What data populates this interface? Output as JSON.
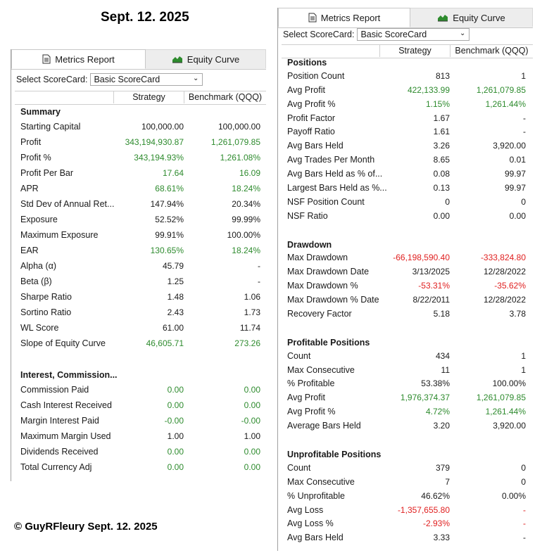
{
  "header_date": "Sept. 12. 2025",
  "footer_copyright": "© GuyRFleury Sept. 12. 2025",
  "tabs": {
    "metrics": "Metrics Report",
    "equity": "Equity Curve"
  },
  "scorecard": {
    "label": "Select ScoreCard:",
    "value": "Basic ScoreCard"
  },
  "columns": {
    "strategy": "Strategy",
    "benchmark": "Benchmark (QQQ)"
  },
  "left_rows": [
    {
      "label": "Summary",
      "section": true
    },
    {
      "label": "Starting Capital",
      "s": "100,000.00",
      "b": "100,000.00",
      "sc": "neu",
      "bc": "neu"
    },
    {
      "label": "Profit",
      "s": "343,194,930.87",
      "b": "1,261,079.85",
      "sc": "pos",
      "bc": "pos"
    },
    {
      "label": "Profit %",
      "s": "343,194.93%",
      "b": "1,261.08%",
      "sc": "pos",
      "bc": "pos"
    },
    {
      "label": "Profit Per Bar",
      "s": "17.64",
      "b": "16.09",
      "sc": "pos",
      "bc": "pos"
    },
    {
      "label": "APR",
      "s": "68.61%",
      "b": "18.24%",
      "sc": "pos",
      "bc": "pos"
    },
    {
      "label": "Std Dev of Annual Ret...",
      "s": "147.94%",
      "b": "20.34%",
      "sc": "neu",
      "bc": "neu"
    },
    {
      "label": "Exposure",
      "s": "52.52%",
      "b": "99.99%",
      "sc": "neu",
      "bc": "neu"
    },
    {
      "label": "Maximum Exposure",
      "s": "99.91%",
      "b": "100.00%",
      "sc": "neu",
      "bc": "neu"
    },
    {
      "label": "EAR",
      "s": "130.65%",
      "b": "18.24%",
      "sc": "pos",
      "bc": "pos"
    },
    {
      "label": "Alpha (α)",
      "s": "45.79",
      "b": "-",
      "sc": "neu",
      "bc": "neu"
    },
    {
      "label": "Beta (β)",
      "s": "1.25",
      "b": "-",
      "sc": "neu",
      "bc": "neu"
    },
    {
      "label": "Sharpe Ratio",
      "s": "1.48",
      "b": "1.06",
      "sc": "neu",
      "bc": "neu"
    },
    {
      "label": "Sortino Ratio",
      "s": "2.43",
      "b": "1.73",
      "sc": "neu",
      "bc": "neu"
    },
    {
      "label": "WL Score",
      "s": "61.00",
      "b": "11.74",
      "sc": "neu",
      "bc": "neu"
    },
    {
      "label": "Slope of Equity Curve",
      "s": "46,605.71",
      "b": "273.26",
      "sc": "pos",
      "bc": "pos"
    },
    {
      "label": "",
      "blank": true
    },
    {
      "label": "Interest, Commission...",
      "section": true
    },
    {
      "label": "Commission Paid",
      "s": "0.00",
      "b": "0.00",
      "sc": "pos",
      "bc": "pos"
    },
    {
      "label": "Cash Interest Received",
      "s": "0.00",
      "b": "0.00",
      "sc": "pos",
      "bc": "pos"
    },
    {
      "label": "Margin Interest Paid",
      "s": "-0.00",
      "b": "-0.00",
      "sc": "pos",
      "bc": "pos"
    },
    {
      "label": "Maximum Margin Used",
      "s": "1.00",
      "b": "1.00",
      "sc": "neu",
      "bc": "neu"
    },
    {
      "label": "Dividends Received",
      "s": "0.00",
      "b": "0.00",
      "sc": "pos",
      "bc": "pos"
    },
    {
      "label": "Total Currency Adj",
      "s": "0.00",
      "b": "0.00",
      "sc": "pos",
      "bc": "pos"
    }
  ],
  "right_rows": [
    {
      "label": "Positions",
      "section": true
    },
    {
      "label": "Position Count",
      "s": "813",
      "b": "1",
      "sc": "neu",
      "bc": "neu"
    },
    {
      "label": "Avg Profit",
      "s": "422,133.99",
      "b": "1,261,079.85",
      "sc": "pos",
      "bc": "pos"
    },
    {
      "label": "Avg Profit %",
      "s": "1.15%",
      "b": "1,261.44%",
      "sc": "pos",
      "bc": "pos"
    },
    {
      "label": "Profit Factor",
      "s": "1.67",
      "b": "-",
      "sc": "neu",
      "bc": "neu"
    },
    {
      "label": "Payoff Ratio",
      "s": "1.61",
      "b": "-",
      "sc": "neu",
      "bc": "neu"
    },
    {
      "label": "Avg Bars Held",
      "s": "3.26",
      "b": "3,920.00",
      "sc": "neu",
      "bc": "neu"
    },
    {
      "label": "Avg Trades Per Month",
      "s": "8.65",
      "b": "0.01",
      "sc": "neu",
      "bc": "neu"
    },
    {
      "label": "Avg Bars Held as % of...",
      "s": "0.08",
      "b": "99.97",
      "sc": "neu",
      "bc": "neu"
    },
    {
      "label": "Largest Bars Held as %...",
      "s": "0.13",
      "b": "99.97",
      "sc": "neu",
      "bc": "neu"
    },
    {
      "label": "NSF Position Count",
      "s": "0",
      "b": "0",
      "sc": "neu",
      "bc": "neu"
    },
    {
      "label": "NSF Ratio",
      "s": "0.00",
      "b": "0.00",
      "sc": "neu",
      "bc": "neu"
    },
    {
      "label": "",
      "blank": true
    },
    {
      "label": "Drawdown",
      "section": true
    },
    {
      "label": "Max Drawdown",
      "s": "-66,198,590.40",
      "b": "-333,824.80",
      "sc": "neg",
      "bc": "neg"
    },
    {
      "label": "Max Drawdown Date",
      "s": "3/13/2025",
      "b": "12/28/2022",
      "sc": "neu",
      "bc": "neu"
    },
    {
      "label": "Max Drawdown %",
      "s": "-53.31%",
      "b": "-35.62%",
      "sc": "neg",
      "bc": "neg"
    },
    {
      "label": "Max Drawdown % Date",
      "s": "8/22/2011",
      "b": "12/28/2022",
      "sc": "neu",
      "bc": "neu"
    },
    {
      "label": "Recovery Factor",
      "s": "5.18",
      "b": "3.78",
      "sc": "neu",
      "bc": "neu"
    },
    {
      "label": "",
      "blank": true
    },
    {
      "label": "Profitable Positions",
      "section": true
    },
    {
      "label": "Count",
      "s": "434",
      "b": "1",
      "sc": "neu",
      "bc": "neu"
    },
    {
      "label": "Max Consecutive",
      "s": "11",
      "b": "1",
      "sc": "neu",
      "bc": "neu"
    },
    {
      "label": "% Profitable",
      "s": "53.38%",
      "b": "100.00%",
      "sc": "neu",
      "bc": "neu"
    },
    {
      "label": "Avg Profit",
      "s": "1,976,374.37",
      "b": "1,261,079.85",
      "sc": "pos",
      "bc": "pos"
    },
    {
      "label": "Avg Profit %",
      "s": "4.72%",
      "b": "1,261.44%",
      "sc": "pos",
      "bc": "pos"
    },
    {
      "label": "Average Bars Held",
      "s": "3.20",
      "b": "3,920.00",
      "sc": "neu",
      "bc": "neu"
    },
    {
      "label": "",
      "blank": true
    },
    {
      "label": "Unprofitable Positions",
      "section": true
    },
    {
      "label": "Count",
      "s": "379",
      "b": "0",
      "sc": "neu",
      "bc": "neu"
    },
    {
      "label": "Max Consecutive",
      "s": "7",
      "b": "0",
      "sc": "neu",
      "bc": "neu"
    },
    {
      "label": "% Unprofitable",
      "s": "46.62%",
      "b": "0.00%",
      "sc": "neu",
      "bc": "neu"
    },
    {
      "label": "Avg Loss",
      "s": "-1,357,655.80",
      "b": "-",
      "sc": "neg",
      "bc": "neg"
    },
    {
      "label": "Avg Loss %",
      "s": "-2.93%",
      "b": "-",
      "sc": "neg",
      "bc": "neg"
    },
    {
      "label": "Avg Bars Held",
      "s": "3.33",
      "b": "-",
      "sc": "neu",
      "bc": "neu"
    }
  ]
}
